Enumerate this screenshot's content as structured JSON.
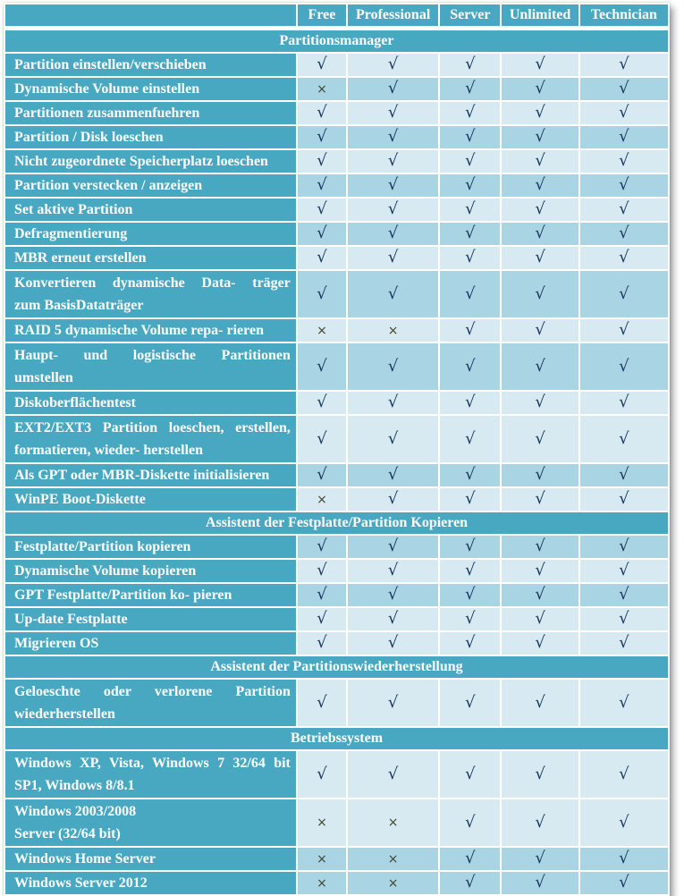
{
  "table": {
    "columns": [
      "Free",
      "Professional",
      "Server",
      "Unlimited",
      "Technician"
    ],
    "symbols": {
      "check": "√",
      "cross": "×"
    },
    "colors": {
      "header_teal": "#48a8c2",
      "row_light": "#d7eaf2",
      "row_dark": "#a9d4e4",
      "check_mark": "#17375e",
      "cross_mark": "#41452f",
      "grid": "#ffffff"
    },
    "rows": [
      {
        "type": "section",
        "label": "Partitionsmanager"
      },
      {
        "type": "feature",
        "shade": "light",
        "just": false,
        "lines": [
          "Partition einstellen/verschieben"
        ],
        "values": [
          "check",
          "check",
          "check",
          "check",
          "check"
        ]
      },
      {
        "type": "feature",
        "shade": "dark",
        "just": false,
        "lines": [
          "Dynamische Volume einstellen"
        ],
        "values": [
          "cross",
          "check",
          "check",
          "check",
          "check"
        ]
      },
      {
        "type": "feature",
        "shade": "light",
        "just": false,
        "lines": [
          "Partitionen zusammenfuehren"
        ],
        "values": [
          "check",
          "check",
          "check",
          "check",
          "check"
        ]
      },
      {
        "type": "feature",
        "shade": "dark",
        "just": false,
        "lines": [
          "Partition / Disk loeschen"
        ],
        "values": [
          "check",
          "check",
          "check",
          "check",
          "check"
        ]
      },
      {
        "type": "feature",
        "shade": "light",
        "just": false,
        "lines": [
          "Nicht zugeordnete Speicherplatz loeschen"
        ],
        "values": [
          "check",
          "check",
          "check",
          "check",
          "check"
        ]
      },
      {
        "type": "feature",
        "shade": "dark",
        "just": false,
        "lines": [
          "Partition verstecken / anzeigen"
        ],
        "values": [
          "check",
          "check",
          "check",
          "check",
          "check"
        ]
      },
      {
        "type": "feature",
        "shade": "light",
        "just": false,
        "lines": [
          "Set aktive Partition"
        ],
        "values": [
          "check",
          "check",
          "check",
          "check",
          "check"
        ]
      },
      {
        "type": "feature",
        "shade": "dark",
        "just": false,
        "lines": [
          "Defragmentierung"
        ],
        "values": [
          "check",
          "check",
          "check",
          "check",
          "check"
        ]
      },
      {
        "type": "feature",
        "shade": "light",
        "just": false,
        "lines": [
          "MBR erneut erstellen"
        ],
        "values": [
          "check",
          "check",
          "check",
          "check",
          "check"
        ]
      },
      {
        "type": "feature",
        "shade": "dark",
        "just": true,
        "lines": [
          "Konvertieren dynamische Data- träger",
          "zum BasisDataträger"
        ],
        "values": [
          "check",
          "check",
          "check",
          "check",
          "check"
        ]
      },
      {
        "type": "feature",
        "shade": "light",
        "just": false,
        "lines": [
          "RAID 5 dynamische Volume repa- rieren"
        ],
        "values": [
          "cross",
          "cross",
          "check",
          "check",
          "check"
        ]
      },
      {
        "type": "feature",
        "shade": "dark",
        "just": true,
        "lines": [
          "Haupt- und logistische Partitionen",
          "umstellen"
        ],
        "values": [
          "check",
          "check",
          "check",
          "check",
          "check"
        ]
      },
      {
        "type": "feature",
        "shade": "light",
        "just": false,
        "lines": [
          "Diskoberflächentest"
        ],
        "values": [
          "check",
          "check",
          "check",
          "check",
          "check"
        ]
      },
      {
        "type": "feature",
        "shade": "light",
        "just": true,
        "lines": [
          "EXT2/EXT3 Partition loeschen, erstellen,",
          "formatieren, wieder- herstellen"
        ],
        "values": [
          "check",
          "check",
          "check",
          "check",
          "check"
        ]
      },
      {
        "type": "feature",
        "shade": "dark",
        "just": false,
        "lines": [
          "Als GPT oder MBR-Diskette initialisieren"
        ],
        "values": [
          "check",
          "check",
          "check",
          "check",
          "check"
        ]
      },
      {
        "type": "feature",
        "shade": "light",
        "just": false,
        "lines": [
          "WinPE Boot-Diskette"
        ],
        "values": [
          "cross",
          "check",
          "check",
          "check",
          "check"
        ]
      },
      {
        "type": "section",
        "label": "Assistent der Festplatte/Partition Kopieren"
      },
      {
        "type": "feature",
        "shade": "dark",
        "just": false,
        "lines": [
          "Festplatte/Partition kopieren"
        ],
        "values": [
          "check",
          "check",
          "check",
          "check",
          "check"
        ]
      },
      {
        "type": "feature",
        "shade": "light",
        "just": false,
        "lines": [
          "Dynamische Volume kopieren"
        ],
        "values": [
          "check",
          "check",
          "check",
          "check",
          "check"
        ]
      },
      {
        "type": "feature",
        "shade": "dark",
        "just": false,
        "lines": [
          "GPT Festplatte/Partition ko- pieren"
        ],
        "values": [
          "check",
          "check",
          "check",
          "check",
          "check"
        ]
      },
      {
        "type": "feature",
        "shade": "light",
        "just": false,
        "lines": [
          "Up-date Festplatte"
        ],
        "values": [
          "check",
          "check",
          "check",
          "check",
          "check"
        ]
      },
      {
        "type": "feature",
        "shade": "light",
        "just": false,
        "lines": [
          "Migrieren OS"
        ],
        "values": [
          "check",
          "check",
          "check",
          "check",
          "check"
        ]
      },
      {
        "type": "section",
        "label": "Assistent der Partitionswiederherstellung"
      },
      {
        "type": "feature",
        "shade": "light",
        "just": true,
        "lines": [
          "Geloeschte oder verlorene Partition",
          "wiederherstellen"
        ],
        "values": [
          "check",
          "check",
          "check",
          "check",
          "check"
        ]
      },
      {
        "type": "section",
        "label": "Betriebssystem"
      },
      {
        "type": "feature",
        "shade": "light",
        "just": true,
        "lines": [
          "Windows XP, Vista, Windows 7 32/64 bit",
          "SP1, Windows 8/8.1"
        ],
        "values": [
          "check",
          "check",
          "check",
          "check",
          "check"
        ]
      },
      {
        "type": "feature",
        "shade": "light",
        "just": false,
        "lines": [
          "Windows 2003/2008",
          "Server (32/64 bit)"
        ],
        "values": [
          "cross",
          "cross",
          "check",
          "check",
          "check"
        ]
      },
      {
        "type": "feature",
        "shade": "dark",
        "just": false,
        "lines": [
          "Windows Home Server"
        ],
        "values": [
          "cross",
          "cross",
          "check",
          "check",
          "check"
        ]
      },
      {
        "type": "feature",
        "shade": "dark",
        "just": false,
        "lines": [
          "Windows Server 2012"
        ],
        "values": [
          "cross",
          "cross",
          "check",
          "check",
          "check"
        ]
      }
    ]
  }
}
